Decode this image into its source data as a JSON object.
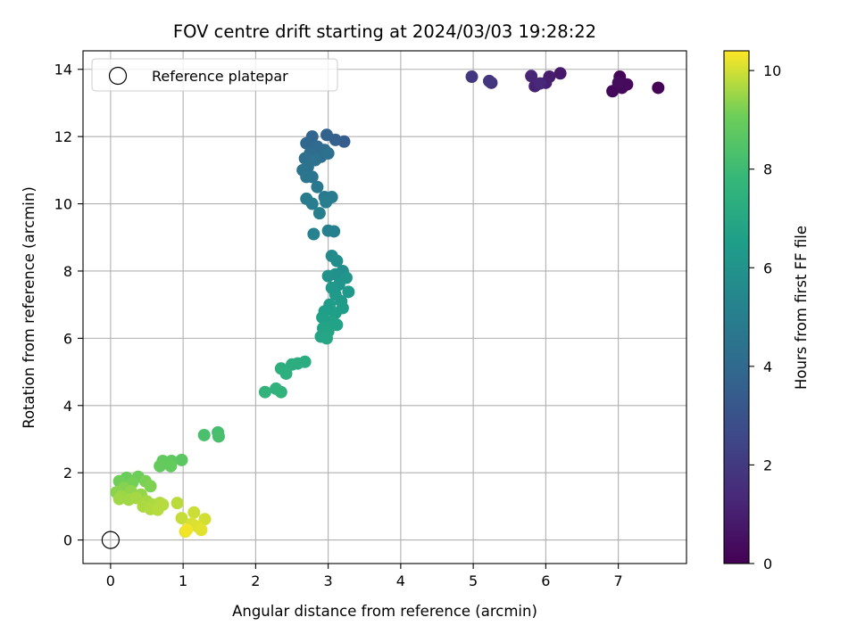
{
  "chart_data": {
    "type": "scatter",
    "title": "FOV centre drift starting at 2024/03/03 19:28:22",
    "xlabel": "Angular distance from reference (arcmin)",
    "ylabel": "Rotation from reference (arcmin)",
    "xlim": [
      -0.38,
      7.94
    ],
    "ylim": [
      -0.7,
      14.55
    ],
    "xticks": [
      0,
      1,
      2,
      3,
      4,
      5,
      6,
      7
    ],
    "yticks": [
      0,
      2,
      4,
      6,
      8,
      10,
      12,
      14
    ],
    "grid": true,
    "legend": {
      "location": "upper-left",
      "entries": [
        "Reference platepar"
      ]
    },
    "reference_point": {
      "x": 0,
      "y": 0,
      "label": "Reference platepar"
    },
    "colorbar": {
      "label": "Hours from first FF file",
      "colormap": "viridis",
      "range": [
        0,
        10.4
      ],
      "ticks": [
        0,
        2,
        4,
        6,
        8,
        10
      ]
    },
    "series": [
      {
        "points": [
          {
            "x": 7.02,
            "y": 13.78,
            "c": 0.1
          },
          {
            "x": 7.55,
            "y": 13.45,
            "c": 0.05
          },
          {
            "x": 6.92,
            "y": 13.35,
            "c": 0.2
          },
          {
            "x": 7.05,
            "y": 13.45,
            "c": 0.25
          },
          {
            "x": 7.12,
            "y": 13.55,
            "c": 0.3
          },
          {
            "x": 7.0,
            "y": 13.6,
            "c": 0.35
          },
          {
            "x": 6.2,
            "y": 13.88,
            "c": 0.8
          },
          {
            "x": 6.05,
            "y": 13.78,
            "c": 0.9
          },
          {
            "x": 6.0,
            "y": 13.6,
            "c": 1.0
          },
          {
            "x": 5.85,
            "y": 13.5,
            "c": 1.1
          },
          {
            "x": 5.8,
            "y": 13.8,
            "c": 1.2
          },
          {
            "x": 5.92,
            "y": 13.58,
            "c": 1.3
          },
          {
            "x": 5.25,
            "y": 13.6,
            "c": 1.7
          },
          {
            "x": 5.22,
            "y": 13.65,
            "c": 1.8
          },
          {
            "x": 4.98,
            "y": 13.78,
            "c": 1.9
          },
          {
            "x": 3.22,
            "y": 11.85,
            "c": 3.5
          },
          {
            "x": 3.1,
            "y": 11.9,
            "c": 3.6
          },
          {
            "x": 2.98,
            "y": 12.05,
            "c": 3.7
          },
          {
            "x": 2.78,
            "y": 12.0,
            "c": 3.8
          },
          {
            "x": 2.7,
            "y": 11.8,
            "c": 3.9
          },
          {
            "x": 2.85,
            "y": 11.7,
            "c": 4.0
          },
          {
            "x": 2.95,
            "y": 11.6,
            "c": 4.1
          },
          {
            "x": 2.75,
            "y": 11.5,
            "c": 4.15
          },
          {
            "x": 2.9,
            "y": 11.4,
            "c": 4.2
          },
          {
            "x": 2.68,
            "y": 11.35,
            "c": 4.3
          },
          {
            "x": 3.0,
            "y": 11.5,
            "c": 4.35
          },
          {
            "x": 2.82,
            "y": 11.3,
            "c": 4.4
          },
          {
            "x": 2.72,
            "y": 11.1,
            "c": 4.45
          },
          {
            "x": 2.65,
            "y": 11.0,
            "c": 4.5
          },
          {
            "x": 2.78,
            "y": 10.8,
            "c": 4.55
          },
          {
            "x": 2.7,
            "y": 10.8,
            "c": 4.6
          },
          {
            "x": 2.85,
            "y": 10.5,
            "c": 4.7
          },
          {
            "x": 2.95,
            "y": 10.2,
            "c": 4.8
          },
          {
            "x": 3.05,
            "y": 10.2,
            "c": 4.85
          },
          {
            "x": 2.7,
            "y": 10.15,
            "c": 4.9
          },
          {
            "x": 2.78,
            "y": 10.0,
            "c": 4.95
          },
          {
            "x": 2.97,
            "y": 10.05,
            "c": 5.0
          },
          {
            "x": 2.88,
            "y": 9.72,
            "c": 5.05
          },
          {
            "x": 3.0,
            "y": 9.2,
            "c": 5.1
          },
          {
            "x": 3.08,
            "y": 9.18,
            "c": 5.15
          },
          {
            "x": 2.8,
            "y": 9.1,
            "c": 5.2
          },
          {
            "x": 3.05,
            "y": 8.45,
            "c": 5.6
          },
          {
            "x": 3.12,
            "y": 8.3,
            "c": 5.7
          },
          {
            "x": 3.2,
            "y": 8.0,
            "c": 5.8
          },
          {
            "x": 3.1,
            "y": 7.9,
            "c": 5.9
          },
          {
            "x": 3.0,
            "y": 7.85,
            "c": 6.0
          },
          {
            "x": 3.25,
            "y": 7.8,
            "c": 6.05
          },
          {
            "x": 3.15,
            "y": 7.6,
            "c": 6.1
          },
          {
            "x": 3.05,
            "y": 7.5,
            "c": 6.2
          },
          {
            "x": 3.28,
            "y": 7.38,
            "c": 6.25
          },
          {
            "x": 3.1,
            "y": 7.3,
            "c": 6.3
          },
          {
            "x": 3.18,
            "y": 7.1,
            "c": 6.35
          },
          {
            "x": 3.02,
            "y": 7.0,
            "c": 6.4
          },
          {
            "x": 3.2,
            "y": 6.9,
            "c": 6.45
          },
          {
            "x": 2.95,
            "y": 6.8,
            "c": 6.5
          },
          {
            "x": 3.1,
            "y": 6.75,
            "c": 6.55
          },
          {
            "x": 2.92,
            "y": 6.62,
            "c": 6.6
          },
          {
            "x": 3.05,
            "y": 6.5,
            "c": 6.65
          },
          {
            "x": 3.12,
            "y": 6.4,
            "c": 6.7
          },
          {
            "x": 2.93,
            "y": 6.3,
            "c": 6.75
          },
          {
            "x": 3.0,
            "y": 6.2,
            "c": 6.8
          },
          {
            "x": 2.9,
            "y": 6.05,
            "c": 6.85
          },
          {
            "x": 2.98,
            "y": 6.0,
            "c": 6.9
          },
          {
            "x": 2.68,
            "y": 5.3,
            "c": 7.2
          },
          {
            "x": 2.58,
            "y": 5.25,
            "c": 7.25
          },
          {
            "x": 2.5,
            "y": 5.22,
            "c": 7.3
          },
          {
            "x": 2.35,
            "y": 5.1,
            "c": 7.35
          },
          {
            "x": 2.42,
            "y": 4.95,
            "c": 7.4
          },
          {
            "x": 2.28,
            "y": 4.5,
            "c": 7.5
          },
          {
            "x": 2.35,
            "y": 4.4,
            "c": 7.55
          },
          {
            "x": 2.13,
            "y": 4.4,
            "c": 7.6
          },
          {
            "x": 1.48,
            "y": 3.2,
            "c": 8.2
          },
          {
            "x": 1.49,
            "y": 3.08,
            "c": 8.25
          },
          {
            "x": 1.29,
            "y": 3.12,
            "c": 8.3
          },
          {
            "x": 0.98,
            "y": 2.38,
            "c": 8.7
          },
          {
            "x": 0.84,
            "y": 2.35,
            "c": 8.75
          },
          {
            "x": 0.72,
            "y": 2.35,
            "c": 8.8
          },
          {
            "x": 0.83,
            "y": 2.2,
            "c": 8.85
          },
          {
            "x": 0.68,
            "y": 2.2,
            "c": 8.9
          },
          {
            "x": 0.22,
            "y": 1.85,
            "c": 9.0
          },
          {
            "x": 0.38,
            "y": 1.88,
            "c": 9.05
          },
          {
            "x": 0.12,
            "y": 1.75,
            "c": 9.1
          },
          {
            "x": 0.3,
            "y": 1.7,
            "c": 9.15
          },
          {
            "x": 0.48,
            "y": 1.75,
            "c": 9.2
          },
          {
            "x": 0.55,
            "y": 1.6,
            "c": 9.25
          },
          {
            "x": 0.18,
            "y": 1.55,
            "c": 9.3
          },
          {
            "x": 0.08,
            "y": 1.42,
            "c": 9.35
          },
          {
            "x": 0.28,
            "y": 1.45,
            "c": 9.4
          },
          {
            "x": 0.42,
            "y": 1.35,
            "c": 9.45
          },
          {
            "x": 0.15,
            "y": 1.3,
            "c": 9.5
          },
          {
            "x": 0.25,
            "y": 1.2,
            "c": 9.55
          },
          {
            "x": 0.12,
            "y": 1.22,
            "c": 9.55
          },
          {
            "x": 0.35,
            "y": 1.25,
            "c": 9.6
          },
          {
            "x": 0.5,
            "y": 1.15,
            "c": 9.6
          },
          {
            "x": 0.45,
            "y": 1.0,
            "c": 9.65
          },
          {
            "x": 0.58,
            "y": 1.05,
            "c": 9.65
          },
          {
            "x": 0.68,
            "y": 1.1,
            "c": 9.7
          },
          {
            "x": 0.55,
            "y": 0.92,
            "c": 9.7
          },
          {
            "x": 0.65,
            "y": 0.9,
            "c": 9.75
          },
          {
            "x": 0.72,
            "y": 1.05,
            "c": 9.75
          },
          {
            "x": 0.92,
            "y": 1.1,
            "c": 9.8
          },
          {
            "x": 0.98,
            "y": 0.65,
            "c": 9.9
          },
          {
            "x": 1.15,
            "y": 0.82,
            "c": 9.95
          },
          {
            "x": 1.3,
            "y": 0.62,
            "c": 10.0
          },
          {
            "x": 1.12,
            "y": 0.48,
            "c": 10.05
          },
          {
            "x": 1.2,
            "y": 0.4,
            "c": 10.1
          },
          {
            "x": 1.25,
            "y": 0.3,
            "c": 10.15
          },
          {
            "x": 1.03,
            "y": 0.25,
            "c": 10.2
          },
          {
            "x": 1.05,
            "y": 0.3,
            "c": 10.3
          }
        ]
      }
    ]
  }
}
